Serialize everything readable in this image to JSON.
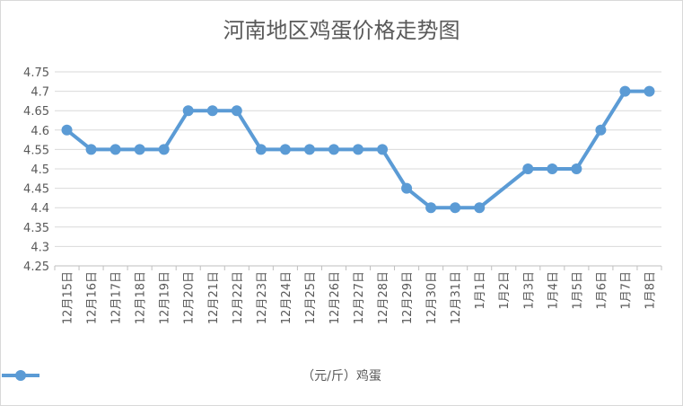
{
  "chart_data": {
    "type": "line",
    "title": "河南地区鸡蛋价格走势图",
    "categories": [
      "12月15日",
      "12月16日",
      "12月17日",
      "12月18日",
      "12月19日",
      "12月20日",
      "12月21日",
      "12月22日",
      "12月23日",
      "12月24日",
      "12月25日",
      "12月26日",
      "12月27日",
      "12月28日",
      "12月29日",
      "12月30日",
      "12月31日",
      "1月1日",
      "1月2日",
      "1月3日",
      "1月4日",
      "1月5日",
      "1月6日",
      "1月7日",
      "1月8日"
    ],
    "series": [
      {
        "name": "（元/斤）鸡蛋",
        "color": "#5b9bd5",
        "values": [
          4.6,
          4.55,
          4.55,
          4.55,
          4.55,
          4.65,
          4.65,
          4.65,
          4.55,
          4.55,
          4.55,
          4.55,
          4.55,
          4.55,
          4.45,
          4.4,
          4.4,
          4.4,
          null,
          4.5,
          4.5,
          4.5,
          4.6,
          4.7,
          4.7
        ]
      }
    ],
    "yticks": [
      "4.25",
      "4.3",
      "4.35",
      "4.4",
      "4.45",
      "4.5",
      "4.55",
      "4.6",
      "4.65",
      "4.7",
      "4.75"
    ],
    "ylim": [
      4.25,
      4.75
    ],
    "grid": true,
    "legend": "bottom"
  }
}
